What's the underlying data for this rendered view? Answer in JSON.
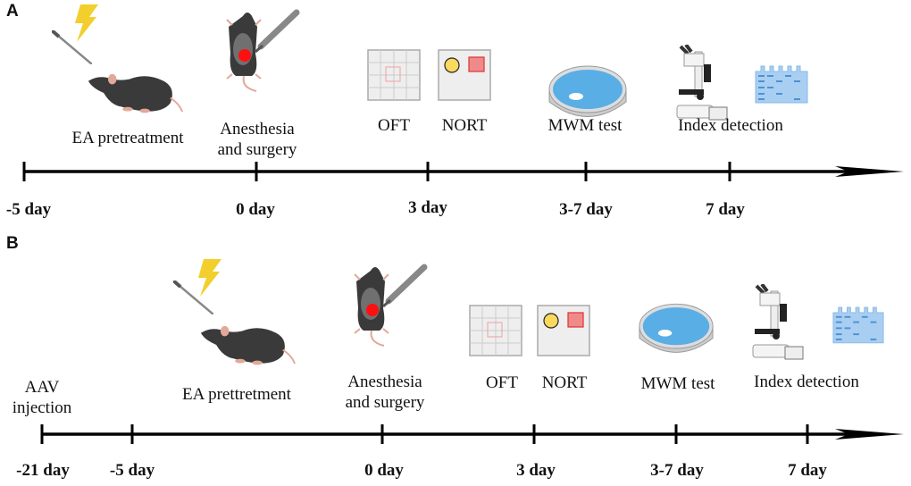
{
  "panels": [
    {
      "label": "A",
      "events": {
        "ea": "EA pretreatment",
        "surgery_1": "Anesthesia",
        "surgery_2": "and surgery",
        "oft": "OFT",
        "nort": "NORT",
        "mwm": "MWM test",
        "index": "Index detection"
      },
      "days": [
        "-5 day",
        "0 day",
        "3 day",
        "3-7 day",
        "7 day"
      ]
    },
    {
      "label": "B",
      "events": {
        "aav_1": "AAV",
        "aav_2": "injection",
        "ea": "EA prettretment",
        "surgery_1": "Anesthesia",
        "surgery_2": "and surgery",
        "oft": "OFT",
        "nort": "NORT",
        "mwm": "MWM test",
        "index": "Index detection"
      },
      "days": [
        "-21 day",
        "-5 day",
        "0 day",
        "3 day",
        "3-7 day",
        "7 day"
      ]
    }
  ],
  "colors": {
    "lightning": "#f2cf2c",
    "mouse": "#3a3a3a",
    "lesion": "#ff1010",
    "water": "#5aaee6",
    "gel": "#a8cff2"
  }
}
